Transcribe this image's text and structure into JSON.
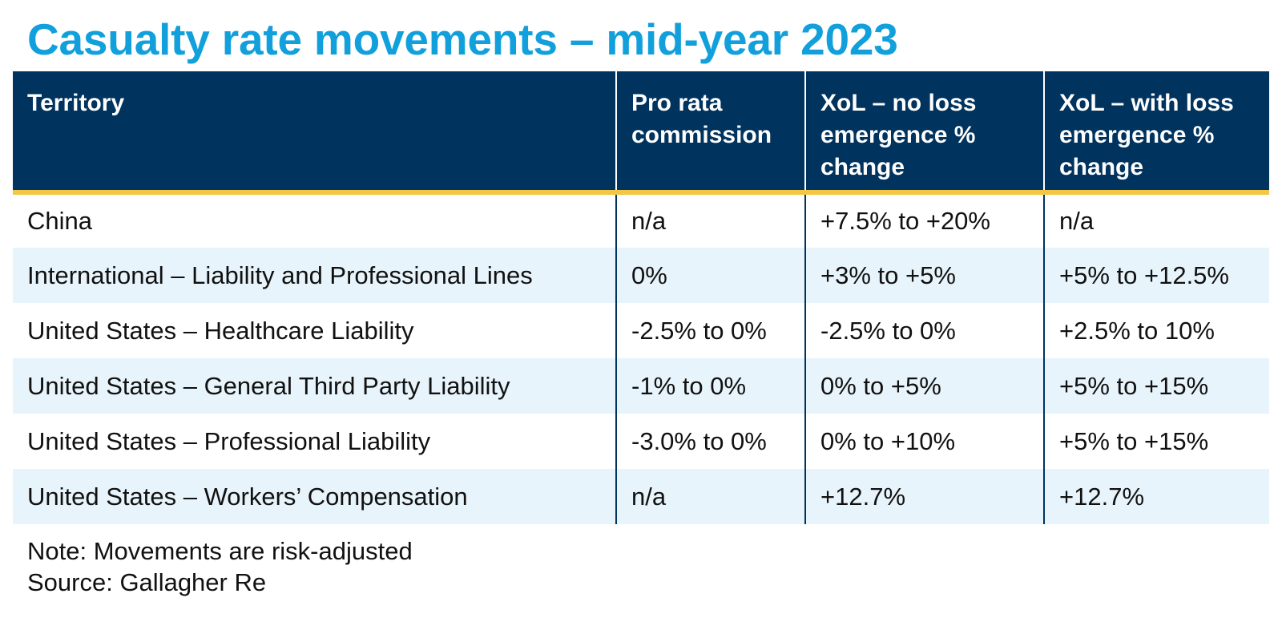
{
  "title": "Casualty rate movements – mid-year 2023",
  "colors": {
    "title": "#12a0dc",
    "header_bg": "#00335e",
    "header_rule": "#f3c644",
    "row_alt": "#e8f4fb"
  },
  "table": {
    "headers": [
      "Territory",
      "Pro rata commission",
      "XoL – no loss emergence % change",
      "XoL – with loss emergence % change"
    ],
    "rows": [
      [
        "China",
        "n/a",
        "+7.5% to +20%",
        "n/a"
      ],
      [
        "International – Liability and Professional Lines",
        "0%",
        "+3% to +5%",
        "+5% to +12.5%"
      ],
      [
        "United States – Healthcare Liability",
        "-2.5% to 0%",
        "-2.5% to 0%",
        "+2.5% to 10%"
      ],
      [
        "United States – General Third Party Liability",
        "-1% to 0%",
        "0% to +5%",
        "+5% to +15%"
      ],
      [
        "United States – Professional Liability",
        "-3.0% to 0%",
        "0% to +10%",
        "+5% to +15%"
      ],
      [
        "United States – Workers’ Compensation",
        "n/a",
        "+12.7%",
        "+12.7%"
      ]
    ]
  },
  "notes": {
    "note": "Note: Movements are risk-adjusted",
    "source": "Source: Gallagher Re"
  }
}
